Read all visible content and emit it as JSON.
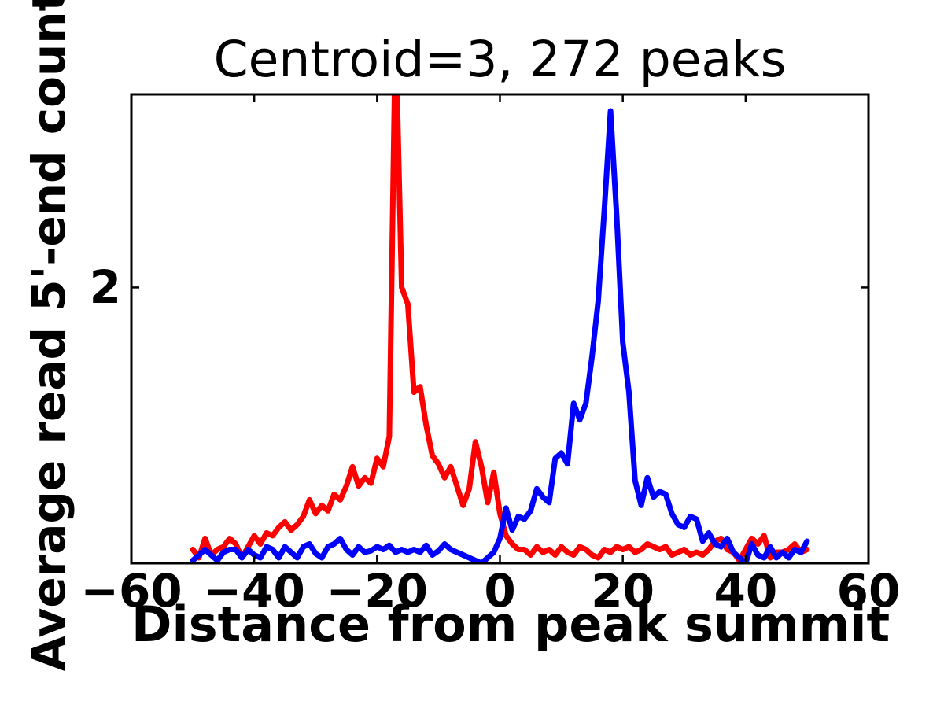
{
  "figure": {
    "title": "Centroid=3, 272 peaks",
    "xlabel": "Distance from peak summit",
    "ylabel": "Average read 5'-end count"
  },
  "chart_data": {
    "type": "line",
    "title": "Centroid=3, 272 peaks",
    "xlabel": "Distance from peak summit",
    "ylabel": "Average read 5'-end count",
    "xlim": [
      -60,
      60
    ],
    "ylim": [
      1.0,
      2.7
    ],
    "grid": false,
    "legend": "none",
    "frame_color": "#000000",
    "tick_style": "inward",
    "xticks": {
      "values": [
        -60,
        -40,
        -20,
        0,
        20,
        40,
        60
      ],
      "labels": [
        "−60",
        "−40",
        "−20",
        "0",
        "20",
        "40",
        "60"
      ]
    },
    "yticks": {
      "values": [
        2
      ],
      "labels": [
        "2"
      ]
    },
    "x_range": {
      "start": -50,
      "end": 50,
      "step": 1
    },
    "series": [
      {
        "name": "red-series",
        "color": "#ff0000",
        "peak_x": -17,
        "values": [
          1.05,
          1.02,
          1.09,
          1.03,
          1.05,
          1.06,
          1.09,
          1.07,
          1.02,
          1.06,
          1.1,
          1.07,
          1.11,
          1.1,
          1.13,
          1.15,
          1.12,
          1.14,
          1.17,
          1.23,
          1.18,
          1.21,
          1.19,
          1.25,
          1.23,
          1.28,
          1.35,
          1.28,
          1.31,
          1.29,
          1.38,
          1.35,
          1.46,
          2.95,
          2.0,
          1.94,
          1.62,
          1.64,
          1.5,
          1.39,
          1.36,
          1.31,
          1.35,
          1.28,
          1.21,
          1.27,
          1.44,
          1.35,
          1.22,
          1.33,
          1.18,
          1.1,
          1.07,
          1.05,
          1.05,
          1.03,
          1.06,
          1.04,
          1.05,
          1.03,
          1.06,
          1.04,
          1.03,
          1.06,
          1.05,
          1.03,
          1.02,
          1.05,
          1.04,
          1.06,
          1.05,
          1.06,
          1.04,
          1.05,
          1.07,
          1.06,
          1.05,
          1.06,
          1.03,
          1.04,
          1.05,
          1.03,
          1.04,
          1.03,
          1.05,
          1.08,
          1.09,
          1.05,
          1.04,
          1.01,
          1.05,
          1.09,
          1.07,
          1.1,
          1.02,
          1.04,
          1.04,
          1.05,
          1.07,
          1.04,
          1.05
        ]
      },
      {
        "name": "blue-series",
        "color": "#0000ff",
        "peak_x": 18,
        "values": [
          1.01,
          1.03,
          1.05,
          1.03,
          1.01,
          1.04,
          1.05,
          1.05,
          1.02,
          1.05,
          1.03,
          1.02,
          1.06,
          1.05,
          1.02,
          1.06,
          1.04,
          1.02,
          1.06,
          1.07,
          1.035,
          1.02,
          1.06,
          1.07,
          1.09,
          1.05,
          1.03,
          1.06,
          1.04,
          1.045,
          1.06,
          1.05,
          1.065,
          1.04,
          1.05,
          1.04,
          1.05,
          1.04,
          1.065,
          1.03,
          1.045,
          1.07,
          1.05,
          1.04,
          1.03,
          1.02,
          1.01,
          1.0,
          1.02,
          1.04,
          1.09,
          1.2,
          1.12,
          1.17,
          1.16,
          1.19,
          1.27,
          1.24,
          1.22,
          1.38,
          1.4,
          1.36,
          1.58,
          1.52,
          1.58,
          1.75,
          1.95,
          2.28,
          2.64,
          2.26,
          1.8,
          1.62,
          1.3,
          1.21,
          1.31,
          1.24,
          1.26,
          1.25,
          1.18,
          1.14,
          1.13,
          1.17,
          1.16,
          1.08,
          1.11,
          1.07,
          1.06,
          1.09,
          1.04,
          1.02,
          1.0,
          1.07,
          1.03,
          1.02,
          1.06,
          1.02,
          1.04,
          1.02,
          1.05,
          1.04,
          1.08
        ]
      }
    ]
  }
}
